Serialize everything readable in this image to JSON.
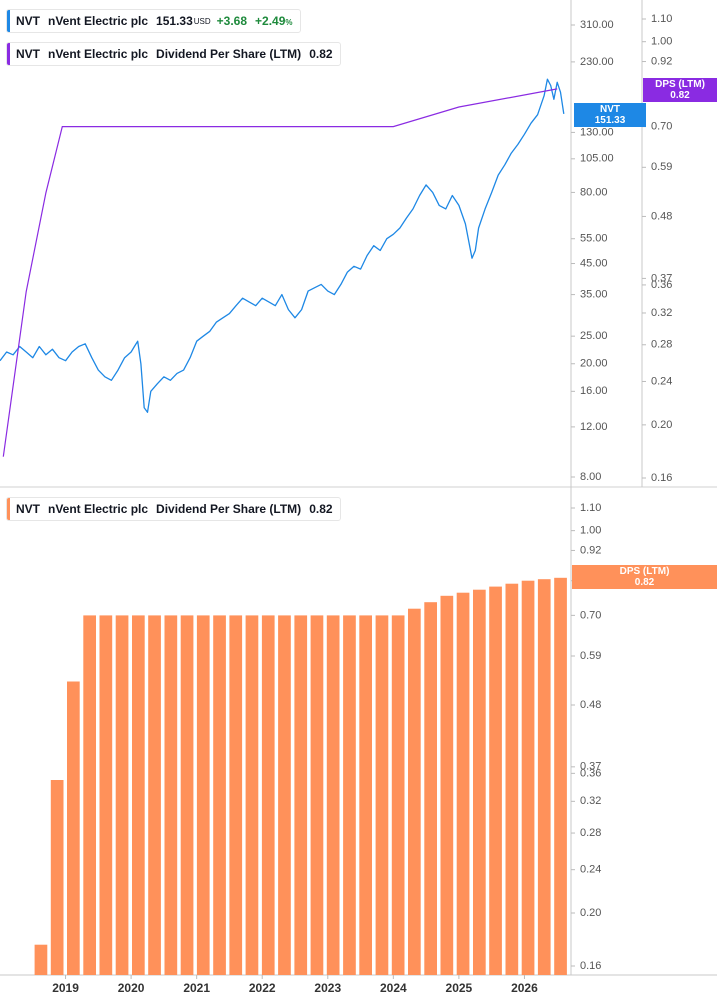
{
  "legend1": {
    "ticker": "NVT",
    "name": "nVent Electric plc",
    "price": "151.33",
    "currency": "USD",
    "change": "+3.68",
    "change_pct": "+2.49",
    "pct_sign": "%"
  },
  "legend2": {
    "ticker": "NVT",
    "name": "nVent Electric plc",
    "metric": "Dividend Per Share (LTM)",
    "value": "0.82"
  },
  "legend3": {
    "ticker": "NVT",
    "name": "nVent Electric plc",
    "metric": "Dividend Per Share (LTM)",
    "value": "0.82"
  },
  "badges": {
    "price": {
      "label": "NVT",
      "value": "151.33"
    },
    "dps_top": {
      "label": "DPS (LTM)",
      "value": "0.82"
    },
    "dps_bottom": {
      "label": "DPS (LTM)",
      "value": "0.82"
    }
  },
  "colors": {
    "price": "#1e88e5",
    "dps_line": "#8a2be2",
    "dps_badge": "#8a2be2",
    "bars": "#ff915a",
    "axis_text": "#555555"
  },
  "chart_data": [
    {
      "type": "line",
      "scale": "log",
      "series": [
        {
          "name": "NVT",
          "x": [
            2018.0,
            2018.1,
            2018.2,
            2018.3,
            2018.4,
            2018.5,
            2018.6,
            2018.7,
            2018.8,
            2018.9,
            2019.0,
            2019.1,
            2019.2,
            2019.3,
            2019.4,
            2019.5,
            2019.6,
            2019.7,
            2019.8,
            2019.9,
            2020.0,
            2020.05,
            2020.1,
            2020.15,
            2020.2,
            2020.25,
            2020.3,
            2020.4,
            2020.5,
            2020.6,
            2020.7,
            2020.8,
            2020.9,
            2021.0,
            2021.1,
            2021.2,
            2021.3,
            2021.4,
            2021.5,
            2021.6,
            2021.7,
            2021.8,
            2021.9,
            2022.0,
            2022.1,
            2022.2,
            2022.3,
            2022.4,
            2022.5,
            2022.6,
            2022.7,
            2022.8,
            2022.9,
            2023.0,
            2023.1,
            2023.2,
            2023.3,
            2023.4,
            2023.5,
            2023.6,
            2023.7,
            2023.8,
            2023.9,
            2024.0,
            2024.1,
            2024.2,
            2024.3,
            2024.4,
            2024.5,
            2024.6,
            2024.7,
            2024.8,
            2024.9,
            2025.0,
            2025.1,
            2025.2,
            2025.25,
            2025.3,
            2025.4,
            2025.5,
            2025.6,
            2025.7,
            2025.8,
            2025.9,
            2026.0,
            2026.1,
            2026.2,
            2026.3,
            2026.35,
            2026.4,
            2026.45,
            2026.5,
            2026.55,
            2026.6
          ],
          "values": [
            20.5,
            22,
            21.5,
            23,
            22,
            21,
            23,
            21.5,
            22.5,
            21,
            20.5,
            22,
            23,
            23.5,
            21,
            19,
            18,
            17.5,
            19,
            21,
            22,
            23,
            24,
            20,
            14,
            13.5,
            16,
            17,
            18,
            17.5,
            18.5,
            19,
            21,
            24,
            25,
            26,
            28,
            29,
            30,
            32,
            34,
            33,
            32,
            34,
            33,
            32,
            35,
            31,
            29,
            31,
            36,
            37,
            38,
            36,
            35,
            38,
            42,
            44,
            43,
            48,
            52,
            50,
            55,
            57,
            60,
            65,
            70,
            78,
            85,
            80,
            72,
            70,
            78,
            72,
            62,
            47,
            50,
            60,
            70,
            80,
            92,
            100,
            110,
            118,
            128,
            140,
            150,
            175,
            200,
            190,
            170,
            195,
            180,
            151
          ]
        },
        {
          "name": "DPS (LTM)",
          "x": [
            2018.05,
            2018.4,
            2018.7,
            2018.95,
            2019.2,
            2024.0,
            2025.0,
            2026.5
          ],
          "values": [
            0.175,
            0.35,
            0.53,
            0.7,
            0.7,
            0.7,
            0.76,
            0.82
          ]
        }
      ],
      "price_ticks": [
        "310.00",
        "230.00",
        "130.00",
        "105.00",
        "80.00",
        "55.00",
        "45.00",
        "35.00",
        "25.00",
        "20.00",
        "16.00",
        "12.00",
        "8.00"
      ],
      "dps_ticks": [
        "1.10",
        "1.00",
        "0.92",
        "0.70",
        "0.59",
        "0.48",
        "0.37",
        "0.36",
        "0.32",
        "0.28",
        "0.24",
        "0.20",
        "0.16"
      ]
    },
    {
      "type": "bar",
      "scale": "log",
      "categories": [
        "2018-Q3",
        "2018-Q4",
        "2019-Q1",
        "2019-Q2",
        "2019-Q3",
        "2019-Q4",
        "2020-Q1",
        "2020-Q2",
        "2020-Q3",
        "2020-Q4",
        "2021-Q1",
        "2021-Q2",
        "2021-Q3",
        "2021-Q4",
        "2022-Q1",
        "2022-Q2",
        "2022-Q3",
        "2022-Q4",
        "2023-Q1",
        "2023-Q2",
        "2023-Q3",
        "2023-Q4",
        "2024-Q1",
        "2024-Q2",
        "2024-Q3",
        "2024-Q4",
        "2025-Q1",
        "2025-Q2",
        "2025-Q3",
        "2025-Q4",
        "2026-Q1",
        "2026-Q2",
        "2026-Q3"
      ],
      "values": [
        0.175,
        0.35,
        0.53,
        0.7,
        0.7,
        0.7,
        0.7,
        0.7,
        0.7,
        0.7,
        0.7,
        0.7,
        0.7,
        0.7,
        0.7,
        0.7,
        0.7,
        0.7,
        0.7,
        0.7,
        0.7,
        0.7,
        0.7,
        0.72,
        0.74,
        0.76,
        0.77,
        0.78,
        0.79,
        0.8,
        0.81,
        0.815,
        0.82
      ],
      "dps_ticks": [
        "1.10",
        "1.00",
        "0.92",
        "0.81",
        "0.70",
        "0.59",
        "0.48",
        "0.37",
        "0.36",
        "0.32",
        "0.28",
        "0.24",
        "0.20",
        "0.16"
      ],
      "x_ticks": [
        "2019",
        "2020",
        "2021",
        "2022",
        "2023",
        "2024",
        "2025",
        "2026"
      ]
    }
  ]
}
